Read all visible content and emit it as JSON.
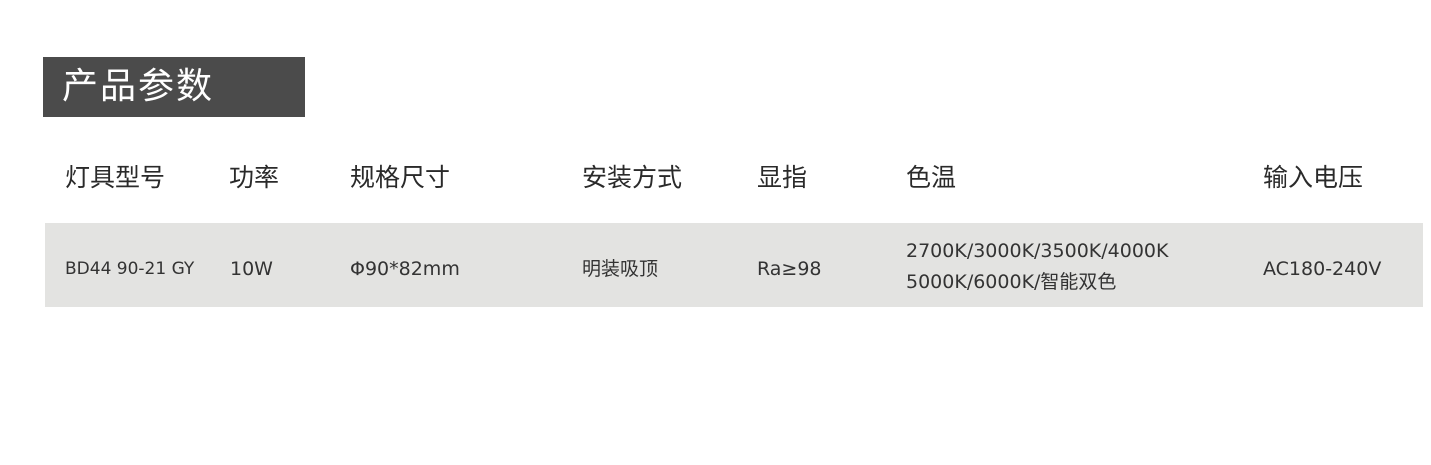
{
  "title": "产品参数",
  "colors": {
    "title_bg": "#4b4b4b",
    "row_bg": "#e3e3e1"
  },
  "table": {
    "headers": [
      "灯具型号",
      "功率",
      "规格尺寸",
      "安装方式",
      "显指",
      "色温",
      "输入电压"
    ],
    "rows": [
      {
        "model": "BD44 90-21 GY",
        "power": "10W",
        "size": "Φ90*82mm",
        "installation": "明装吸顶",
        "cri": "Ra≥98",
        "cct_line1": "2700K/3000K/3500K/4000K",
        "cct_line2": "5000K/6000K/智能双色",
        "voltage": "AC180-240V"
      }
    ]
  }
}
